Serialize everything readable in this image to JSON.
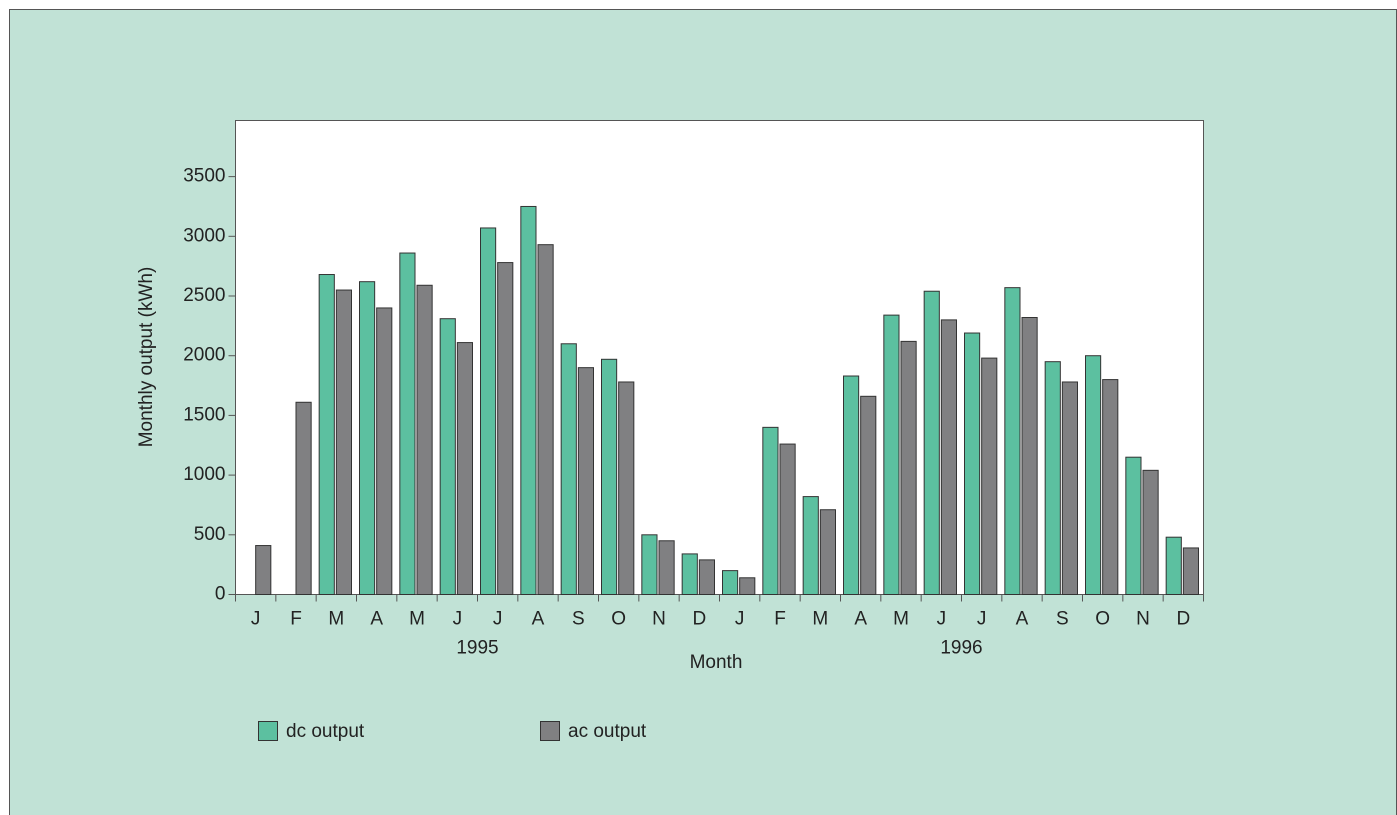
{
  "chart_data": {
    "type": "bar",
    "categories": [
      "J",
      "F",
      "M",
      "A",
      "M",
      "J",
      "J",
      "A",
      "S",
      "O",
      "N",
      "D",
      "J",
      "F",
      "M",
      "A",
      "M",
      "J",
      "J",
      "A",
      "S",
      "O",
      "N",
      "D"
    ],
    "x_groups": [
      "1995",
      "1996"
    ],
    "xlabel": "Month",
    "ylabel": "Monthly output (kWh)",
    "series": [
      {
        "name": "dc output",
        "color": "#5cc0a0",
        "values": [
          null,
          null,
          2680,
          2620,
          2860,
          2310,
          3070,
          3250,
          2100,
          1970,
          500,
          340,
          200,
          1400,
          820,
          1830,
          2340,
          2540,
          2190,
          2570,
          1950,
          2000,
          1150,
          480
        ]
      },
      {
        "name": "ac output",
        "color": "#808082",
        "values": [
          410,
          1610,
          2550,
          2400,
          2590,
          2110,
          2780,
          2930,
          1900,
          1780,
          450,
          290,
          140,
          1260,
          710,
          1660,
          2120,
          2300,
          1980,
          2320,
          1780,
          1800,
          1040,
          390
        ]
      }
    ],
    "ylim": [
      0,
      3970
    ],
    "yticks": [
      0,
      500,
      1000,
      1500,
      2000,
      2500,
      3000,
      3500
    ],
    "legend": "bottom"
  }
}
